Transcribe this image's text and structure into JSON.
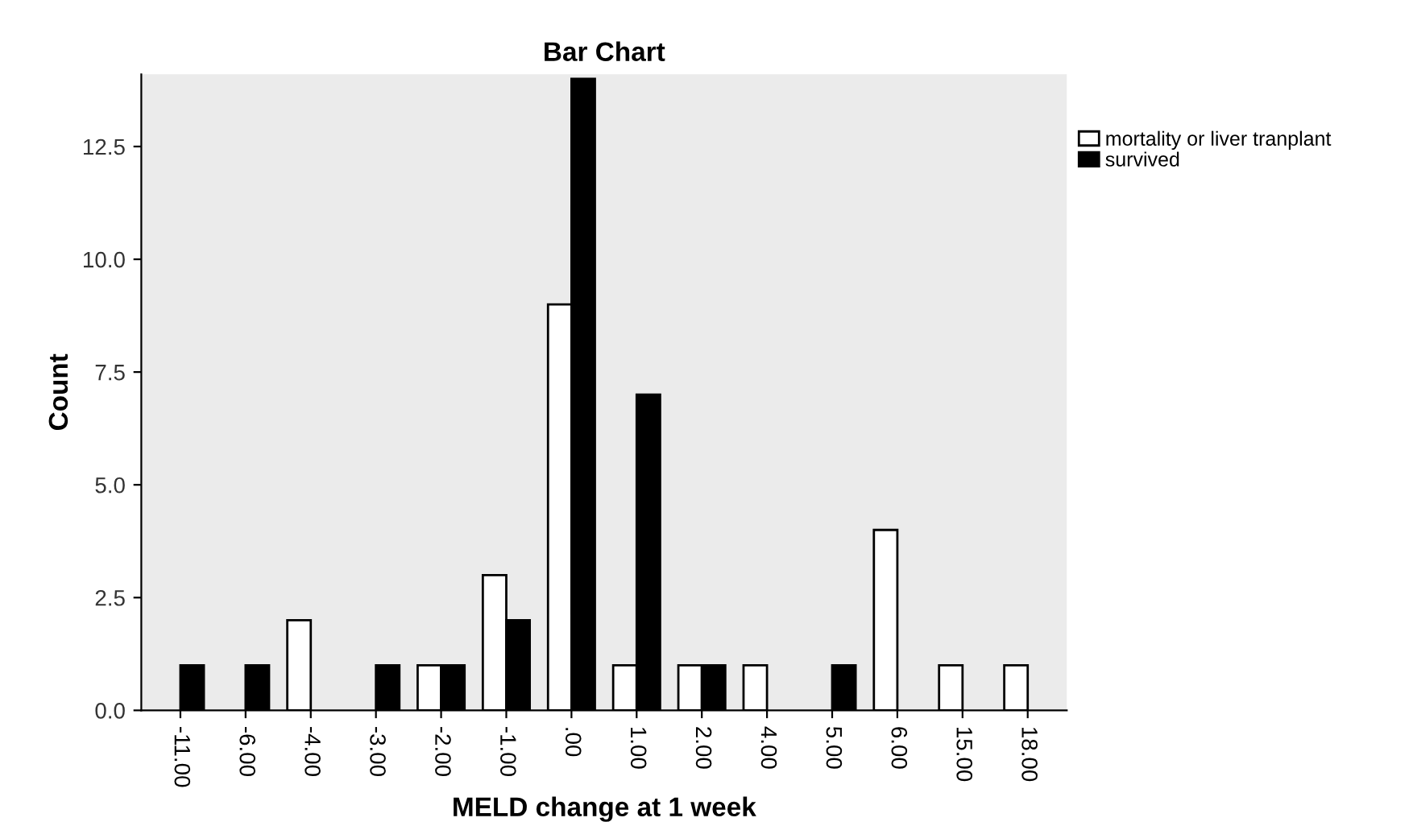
{
  "chart_data": {
    "type": "bar",
    "title": "Bar Chart",
    "xlabel": "MELD change at 1 week",
    "ylabel": "Count",
    "categories": [
      "-11.00",
      "-6.00",
      "-4.00",
      "-3.00",
      "-2.00",
      "-1.00",
      ".00",
      "1.00",
      "2.00",
      "4.00",
      "5.00",
      "6.00",
      "15.00",
      "18.00"
    ],
    "series": [
      {
        "name": "mortality or liver tranplant",
        "color": "#ffffff",
        "values": [
          null,
          null,
          2,
          null,
          1,
          3,
          9,
          1,
          1,
          1,
          null,
          4,
          1,
          1
        ]
      },
      {
        "name": "survived",
        "color": "#000000",
        "values": [
          1,
          1,
          null,
          1,
          1,
          2,
          14,
          7,
          1,
          null,
          1,
          null,
          null,
          null
        ]
      }
    ],
    "ylim": [
      0,
      14.1
    ],
    "yticks": [
      {
        "value": 0,
        "label": "0.0"
      },
      {
        "value": 2.5,
        "label": "2.5"
      },
      {
        "value": 5,
        "label": "5.0"
      },
      {
        "value": 7.5,
        "label": "7.5"
      },
      {
        "value": 10,
        "label": "10.0"
      },
      {
        "value": 12.5,
        "label": "12.5"
      }
    ],
    "grid": false,
    "legend": "top right"
  }
}
